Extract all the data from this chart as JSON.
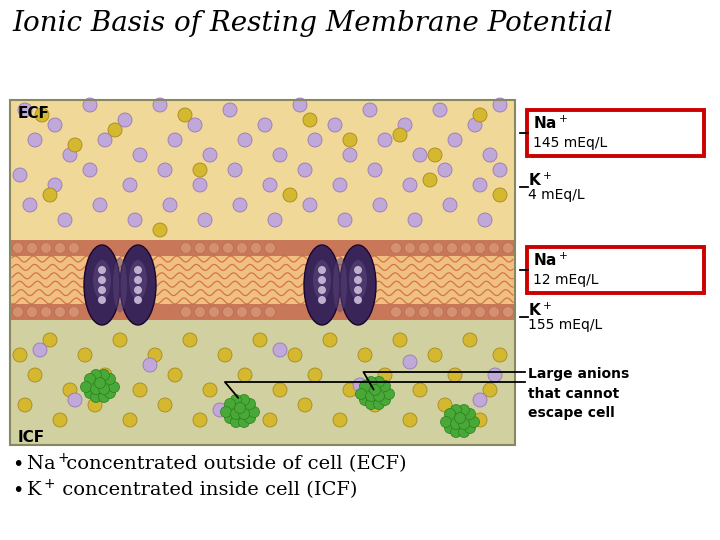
{
  "title": "Ionic Basis of Resting Membrane Potential",
  "title_fontsize": 20,
  "bg_color": "#ffffff",
  "ecf_color": "#f0d898",
  "icf_color": "#d8d8b0",
  "membrane_top_color": "#c87858",
  "membrane_bot_color": "#c87858",
  "wave_mid_color": "#f0c080",
  "wave_line_color": "#cc6040",
  "protein_color": "#3a2558",
  "protein_highlight": "#5a4578",
  "protein_dot": "#c0b0d0",
  "na_color": "#c0a8d8",
  "na_edge": "#9878b8",
  "k_color": "#d4b830",
  "k_edge": "#a88820",
  "green_color": "#48a838",
  "green_edge": "#288018",
  "red_box": "#cc0000",
  "ecf_label": "ECF",
  "icf_label": "ICF",
  "na_ecf_line1": "Na+",
  "na_ecf_line2": "145 mEq/L",
  "k_ecf_line1": "K+",
  "k_ecf_line2": "4 mEq/L",
  "na_icf_line1": "Na+",
  "na_icf_line2": "12 mEq/L",
  "k_icf_line1": "K+",
  "k_icf_line2": "155 mEq/L",
  "anion_label": "Large anions\nthat cannot\nescape cell",
  "bullet1": "Na+ concentrated outside of cell (ECF)",
  "bullet2": "K+ concentrated inside cell (ICF)"
}
